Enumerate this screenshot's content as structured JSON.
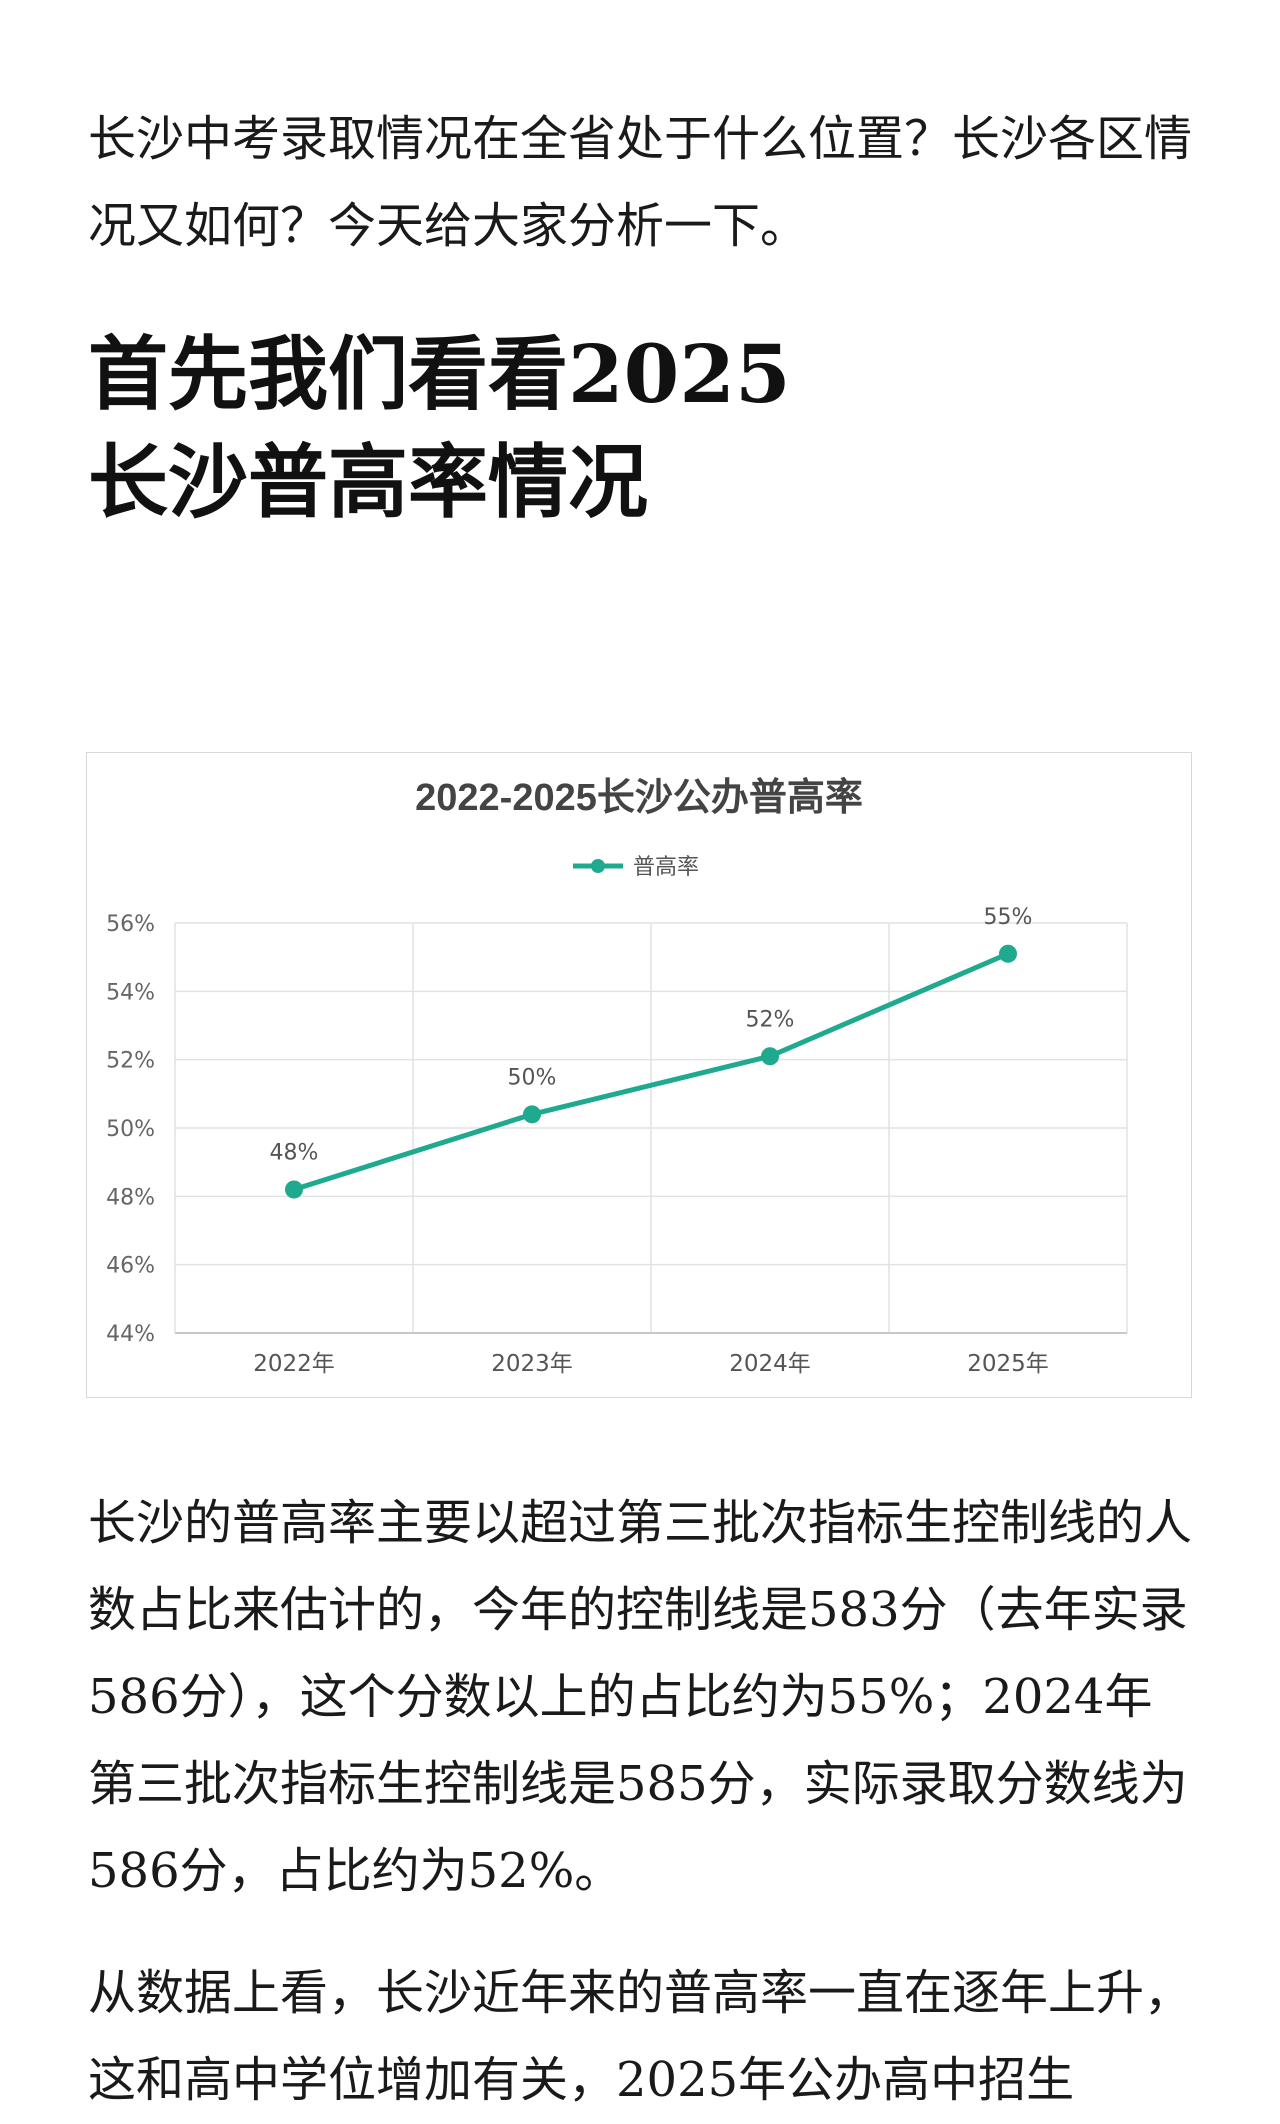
{
  "article": {
    "intro": "长沙中考录取情况在全省处于什么位置？长沙各区情况又如何？今天给大家分析一下。",
    "heading_line1": "首先我们看看2025",
    "heading_line2": "长沙普高率情况",
    "paragraph1": "长沙的普高率主要以超过第三批次指标生控制线的人数占比来估计的，今年的控制线是583分（去年实录586分），这个分数以上的占比约为55%；2024年第三批次指标生控制线是585分，实际录取分数线为586分，占比约为52%。",
    "paragraph2": "从数据上看，长沙近年来的普高率一直在逐年上升，这和高中学位增加有关，2025年公办高中招生"
  },
  "chart_data": {
    "type": "line",
    "title": "2022-2025长沙公办普高率",
    "xlabel": "",
    "ylabel": "",
    "categories": [
      "2022年",
      "2023年",
      "2024年",
      "2025年"
    ],
    "series": [
      {
        "name": "普高率",
        "values": [
          48.2,
          50.4,
          52.1,
          55.1
        ],
        "labels": [
          "48%",
          "50%",
          "52%",
          "55%"
        ],
        "color": "#1fa98e"
      }
    ],
    "ylim": [
      44,
      56
    ],
    "yticks": [
      "44%",
      "46%",
      "48%",
      "50%",
      "52%",
      "54%",
      "56%"
    ],
    "grid": true,
    "legend": "top-center"
  }
}
